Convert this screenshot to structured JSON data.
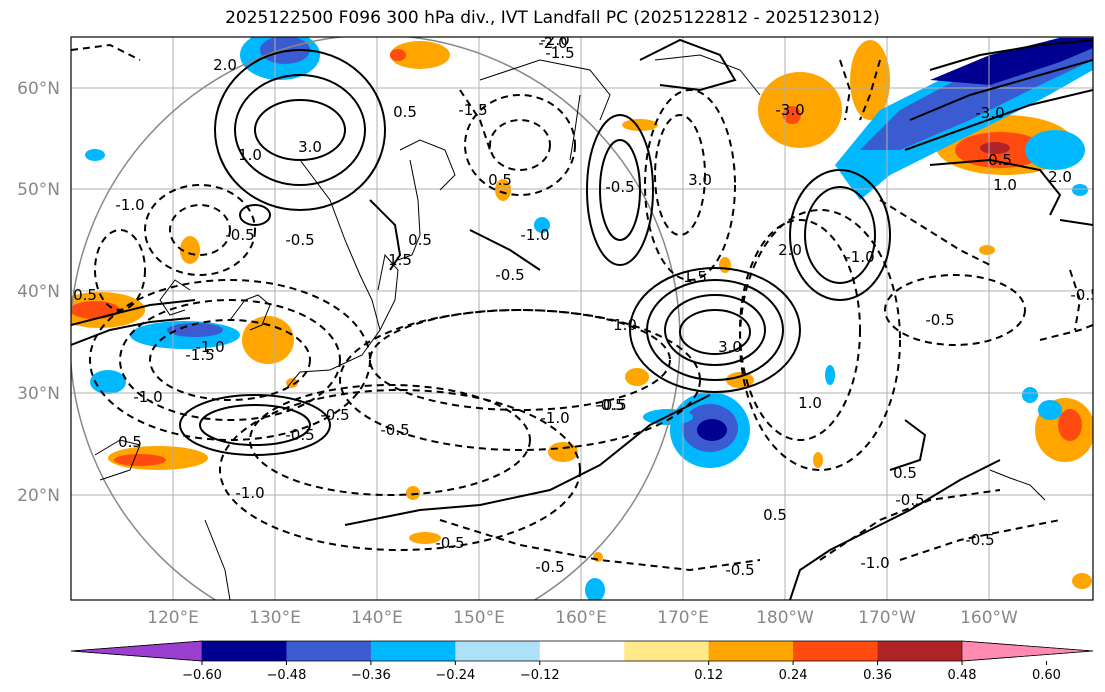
{
  "title": "2025122500 F096 300 hPa div., IVT Landfall PC (2025122812 - 2025123012)",
  "lat_labels": [
    "60°N",
    "50°N",
    "40°N",
    "30°N",
    "20°N"
  ],
  "lon_labels": [
    "120°E",
    "130°E",
    "140°E",
    "150°E",
    "160°E",
    "170°E",
    "180°W",
    "170°W",
    "160°W"
  ],
  "colorbar": {
    "colors": [
      "#9a3fcf",
      "#000090",
      "#3a5cd0",
      "#00b8ff",
      "#aee0f8",
      "#ffffff",
      "#ffe98a",
      "#ffa500",
      "#ff4a10",
      "#b02428",
      "#ff8cb0"
    ],
    "tick_labels": [
      "−0.60",
      "−0.48",
      "−0.36",
      "−0.24",
      "−0.12",
      "0.12",
      "0.24",
      "0.36",
      "0.48",
      "0.60"
    ]
  },
  "contour_labels": [
    "3.0",
    "2.0",
    "1.0",
    "0.5",
    "-0.5",
    "-1.0",
    "-1.5",
    "1.5",
    "-2.0",
    "3.0",
    "-3.0",
    "0.5",
    "-0.5",
    "-1.5",
    "-0.5",
    "-1.0",
    "0.5",
    "-0.5",
    "1.0",
    "-1.0",
    "2.0",
    "-0.5",
    "0.5",
    "-1.0",
    "-1.5",
    "-0.5",
    "-1.0",
    "-0.5",
    "1.5",
    "2.0",
    "-1.0",
    "3.0",
    "-0.5",
    "0.5",
    "-0.5",
    "-1.0",
    "-0.5",
    "0.5",
    "1.0",
    "-3.0",
    "-2.0",
    "0.5",
    "-0.5",
    "0.5",
    "-0.5",
    "-0.5",
    "-1.0",
    "-0.5",
    "-0.5",
    "-0.5",
    "1.0"
  ]
}
